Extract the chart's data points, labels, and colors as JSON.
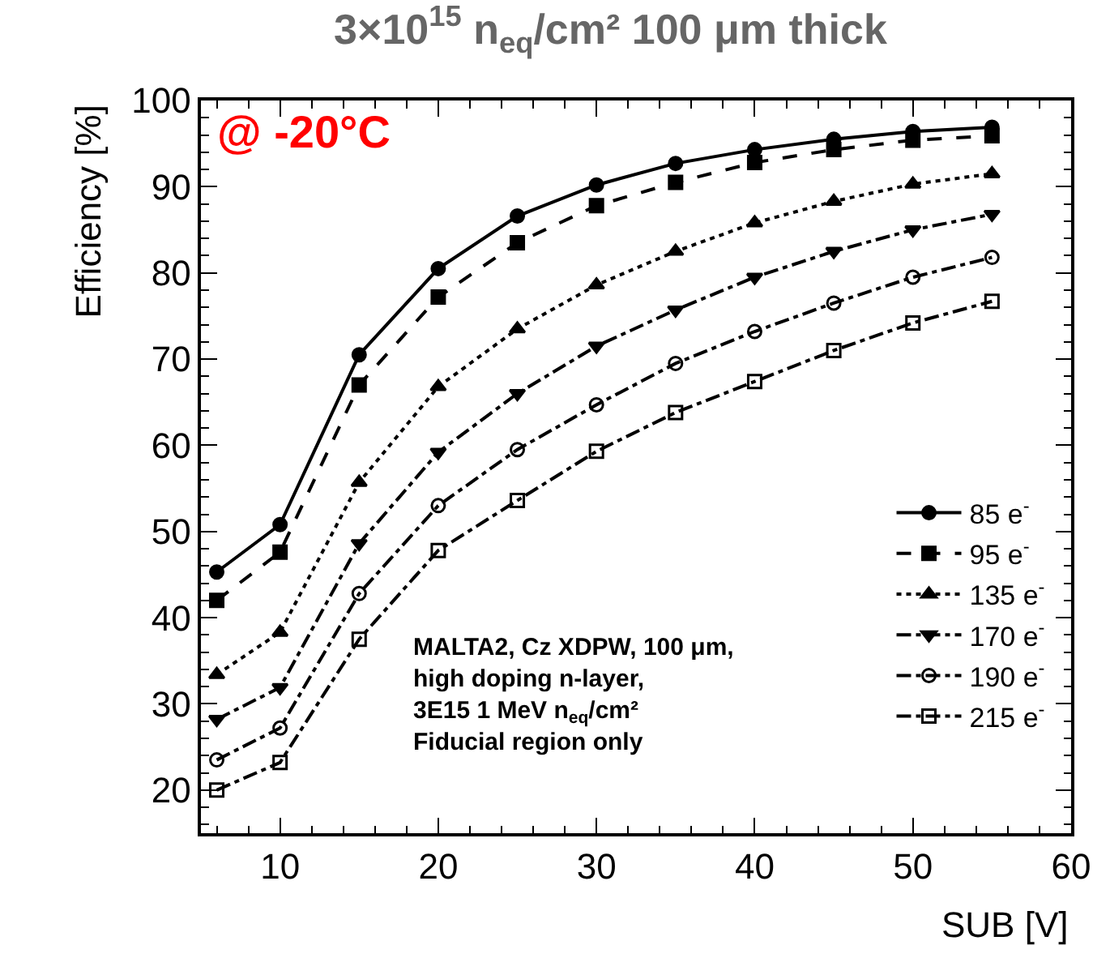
{
  "chart_data": {
    "type": "line",
    "title": "3×10$^{15}$ n$_{eq}$/cm² 100 μm thick",
    "xlabel": "SUB [V]",
    "ylabel": "Efficiency [%]",
    "x": [
      6,
      10,
      15,
      20,
      25,
      30,
      35,
      40,
      45,
      50,
      55
    ],
    "series": [
      {
        "name": "85 e$^{-}$",
        "color": "#000000",
        "marker": "circle",
        "line_style": "solid",
        "values": [
          45.3,
          50.8,
          70.5,
          80.5,
          86.6,
          90.2,
          92.7,
          94.3,
          95.5,
          96.4,
          96.9
        ]
      },
      {
        "name": "95 e$^{-}$",
        "color": "#000000",
        "marker": "square",
        "line_style": "dashed",
        "values": [
          42,
          47.6,
          67,
          77.2,
          83.5,
          87.8,
          90.5,
          92.8,
          94.3,
          95.4,
          95.9
        ]
      },
      {
        "name": "135 e$^{-}$",
        "color": "#000000",
        "marker": "triangle",
        "line_style": "dotted",
        "values": [
          33.4,
          38.3,
          55.7,
          66.8,
          73.5,
          78.6,
          82.5,
          85.8,
          88.3,
          90.3,
          91.5
        ]
      },
      {
        "name": "170 e$^{-}$",
        "color": "#000000",
        "marker": "triangle-down",
        "line_style": "dashdot",
        "values": [
          28.2,
          31.9,
          48.6,
          59.2,
          66,
          71.5,
          75.7,
          79.5,
          82.5,
          85,
          86.8
        ]
      },
      {
        "name": "190 e$^{-}$",
        "color": "#000000",
        "marker": "circle-open",
        "line_style": "dashdot",
        "values": [
          23.5,
          27.2,
          42.8,
          53,
          59.5,
          64.7,
          69.5,
          73.2,
          76.5,
          79.5,
          81.8
        ]
      },
      {
        "name": "215 e$^{-}$",
        "color": "#000000",
        "marker": "square-open",
        "line_style": "dashdot",
        "values": [
          20,
          23.2,
          37.5,
          47.8,
          53.6,
          59.3,
          63.8,
          67.4,
          71,
          74.2,
          76.7
        ]
      }
    ],
    "xlim": [
      5,
      60
    ],
    "xticks": [
      10,
      20,
      30,
      40,
      50,
      60
    ],
    "ylim": [
      15,
      100
    ],
    "yticks": [
      20,
      30,
      40,
      50,
      60,
      70,
      80,
      90,
      100
    ],
    "legend": "bottom right",
    "annotations": [
      "@ -20°C",
      "MALTA2, Cz XDPW, 100 μm,\nhigh doping n-layer,\n3E15 1 MeV n$_{eq}$/cm²\nFiducial region only"
    ]
  }
}
